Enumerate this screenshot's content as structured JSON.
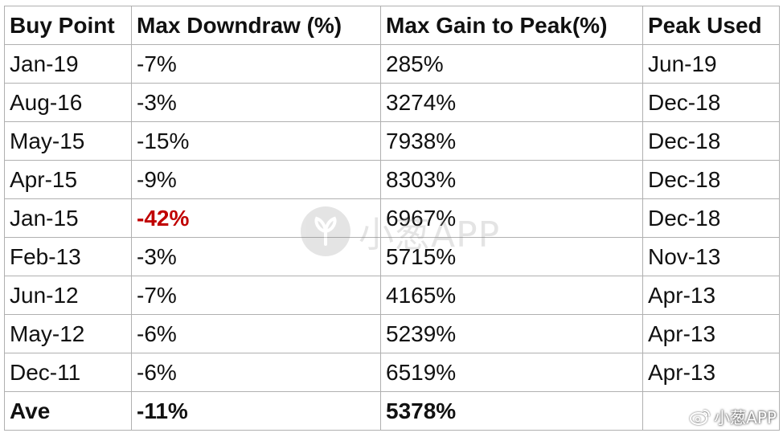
{
  "table": {
    "headers": [
      "Buy Point",
      "Max Downdraw (%)",
      "Max Gain to Peak(%)",
      "Peak Used"
    ],
    "rows": [
      [
        "Jan-19",
        "-7%",
        "285%",
        "Jun-19"
      ],
      [
        "Aug-16",
        "-3%",
        "3274%",
        "Dec-18"
      ],
      [
        "May-15",
        "-15%",
        "7938%",
        "Dec-18"
      ],
      [
        "Apr-15",
        "-9%",
        "8303%",
        "Dec-18"
      ],
      [
        "Jan-15",
        "-42%",
        "6967%",
        "Dec-18"
      ],
      [
        "Feb-13",
        "-3%",
        "5715%",
        "Nov-13"
      ],
      [
        "Jun-12",
        "-7%",
        "4165%",
        "Apr-13"
      ],
      [
        "May-12",
        "-6%",
        "5239%",
        "Apr-13"
      ],
      [
        "Dec-11",
        "-6%",
        "6519%",
        "Apr-13"
      ]
    ],
    "summary": [
      "Ave",
      "-11%",
      "5378%",
      ""
    ],
    "highlight_color": "#c00000"
  },
  "watermark": {
    "text": "小葱APP",
    "icon": "leaf-logo-icon"
  },
  "corner_mark": {
    "text": "小葱APP",
    "icon": "weibo-icon"
  }
}
